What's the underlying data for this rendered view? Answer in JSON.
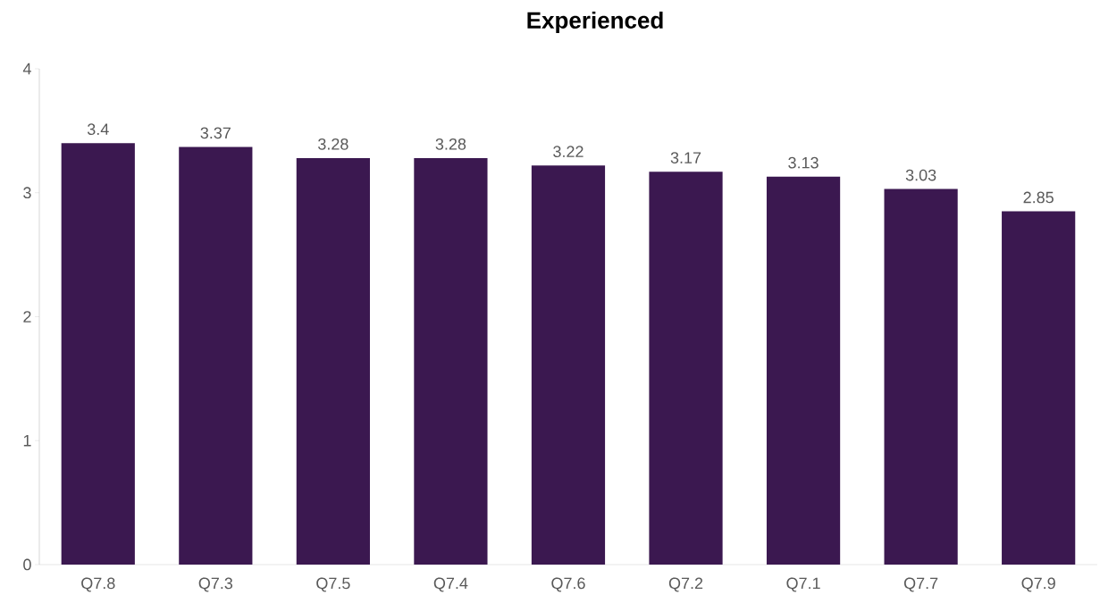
{
  "chart_data": {
    "type": "bar",
    "title": "Experienced",
    "categories": [
      "Q7.8",
      "Q7.3",
      "Q7.5",
      "Q7.4",
      "Q7.6",
      "Q7.2",
      "Q7.1",
      "Q7.7",
      "Q7.9"
    ],
    "values": [
      3.4,
      3.37,
      3.28,
      3.28,
      3.22,
      3.17,
      3.13,
      3.03,
      2.85
    ],
    "color": "#3b1850",
    "ylim": [
      0,
      4
    ],
    "yticks": [
      0,
      1,
      2,
      3,
      4
    ],
    "data_labels": true,
    "grid": false
  }
}
